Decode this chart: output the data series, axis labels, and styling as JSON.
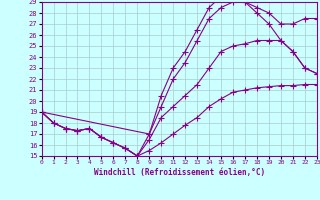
{
  "xlabel": "Windchill (Refroidissement éolien,°C)",
  "xlim": [
    0,
    23
  ],
  "ylim": [
    15,
    29
  ],
  "yticks": [
    15,
    16,
    17,
    18,
    19,
    20,
    21,
    22,
    23,
    24,
    25,
    26,
    27,
    28,
    29
  ],
  "xticks": [
    0,
    1,
    2,
    3,
    4,
    5,
    6,
    7,
    8,
    9,
    10,
    11,
    12,
    13,
    14,
    15,
    16,
    17,
    18,
    19,
    20,
    21,
    22,
    23
  ],
  "line_color": "#880088",
  "bg_color": "#ccffff",
  "grid_color": "#aacccc",
  "curves": [
    {
      "x": [
        0,
        1,
        2,
        3,
        4,
        5,
        6,
        7,
        8,
        9,
        10,
        11,
        12,
        13,
        14,
        15,
        16,
        17,
        18,
        19,
        20,
        21,
        22,
        23
      ],
      "y": [
        19.0,
        18.0,
        17.5,
        17.3,
        17.5,
        16.7,
        16.2,
        15.7,
        15.0,
        15.5,
        16.2,
        17.0,
        17.8,
        18.5,
        19.5,
        20.2,
        20.8,
        21.0,
        21.2,
        21.3,
        21.4,
        21.4,
        21.5,
        21.5
      ]
    },
    {
      "x": [
        0,
        1,
        2,
        3,
        4,
        5,
        6,
        7,
        8,
        9,
        10,
        11,
        12,
        13,
        14,
        15,
        16,
        17,
        18,
        19,
        20,
        21,
        22,
        23
      ],
      "y": [
        19.0,
        18.0,
        17.5,
        17.3,
        17.5,
        16.7,
        16.2,
        15.7,
        15.0,
        16.5,
        18.5,
        19.5,
        20.5,
        21.5,
        23.0,
        24.5,
        25.0,
        25.2,
        25.5,
        25.5,
        25.5,
        24.5,
        23.0,
        22.5
      ]
    },
    {
      "x": [
        0,
        1,
        2,
        3,
        4,
        5,
        6,
        7,
        8,
        9,
        10,
        11,
        12,
        13,
        14,
        15,
        16,
        17,
        18,
        19,
        20,
        21,
        22,
        23
      ],
      "y": [
        19.0,
        18.0,
        17.5,
        17.3,
        17.5,
        16.7,
        16.2,
        15.7,
        15.0,
        17.0,
        20.5,
        23.0,
        24.5,
        26.5,
        28.5,
        29.5,
        29.5,
        29.0,
        28.0,
        27.0,
        25.5,
        24.5,
        23.0,
        22.5
      ]
    },
    {
      "x": [
        0,
        9,
        10,
        11,
        12,
        13,
        14,
        15,
        16,
        17,
        18,
        19,
        20,
        21,
        22,
        23
      ],
      "y": [
        19.0,
        17.0,
        19.5,
        22.0,
        23.5,
        25.5,
        27.5,
        28.5,
        29.0,
        29.0,
        28.5,
        28.0,
        27.0,
        27.0,
        27.5,
        27.5
      ]
    }
  ]
}
